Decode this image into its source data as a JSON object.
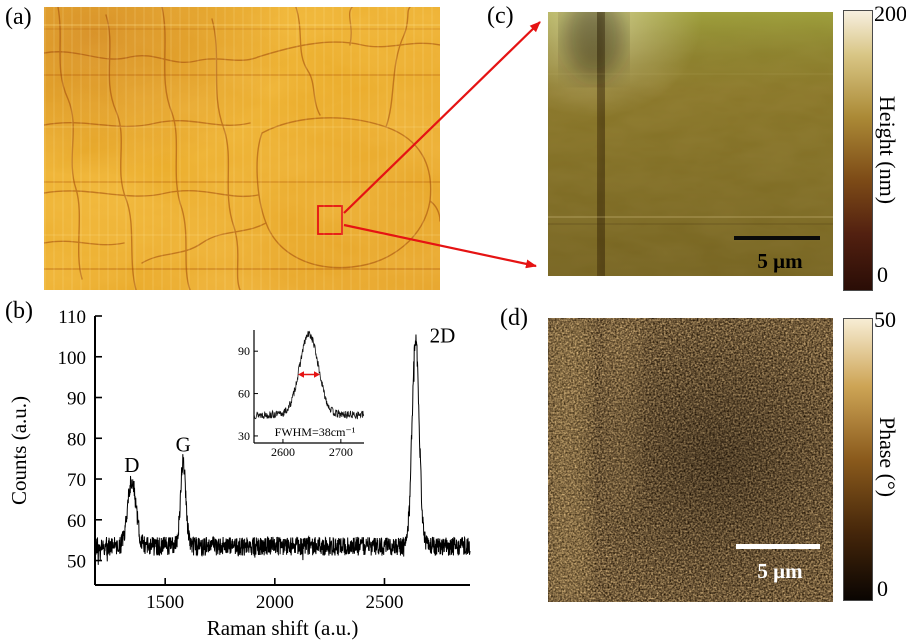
{
  "colors": {
    "annotation_red": "#e51313",
    "spectrum_line": "#000000"
  },
  "panels": {
    "a": {
      "label": "(a)"
    },
    "b": {
      "label": "(b)"
    },
    "c": {
      "label": "(c)",
      "scale_bar": "5 μm",
      "colorbar": {
        "title": "Height (nm)",
        "max": "200",
        "min": "0"
      }
    },
    "d": {
      "label": "(d)",
      "scale_bar": "5 μm",
      "colorbar": {
        "title": "Phase (°)",
        "max": "50",
        "min": "0"
      }
    }
  },
  "chart_data": {
    "type": "line",
    "title": "",
    "xlabel": "Raman shift (a.u.)",
    "ylabel": "Counts (a.u.)",
    "xlim": [
      1180,
      2890
    ],
    "ylim": [
      44,
      110
    ],
    "xticks": [
      1500,
      2000,
      2500
    ],
    "yticks": [
      50,
      60,
      70,
      80,
      90,
      100,
      110
    ],
    "grid": false,
    "baseline_counts": 53.5,
    "noise_amplitude": 2.3,
    "peaks": [
      {
        "label": "D",
        "center": 1348,
        "height": 16,
        "fwhm": 45
      },
      {
        "label": "G",
        "center": 1582,
        "height": 21,
        "fwhm": 28
      },
      {
        "label": "2D",
        "center": 2642,
        "height": 51,
        "fwhm": 38
      }
    ],
    "inset": {
      "xlim": [
        2550,
        2740
      ],
      "ylim": [
        25,
        105
      ],
      "xticks": [
        2600,
        2700
      ],
      "yticks": [
        30,
        60,
        90
      ],
      "baseline_counts": 45,
      "noise_amplitude": 2.8,
      "peak": {
        "center": 2645,
        "height": 57,
        "fwhm": 38
      },
      "annotation": "FWHM=38cm⁻¹",
      "arrow_at_half_max": true
    }
  }
}
